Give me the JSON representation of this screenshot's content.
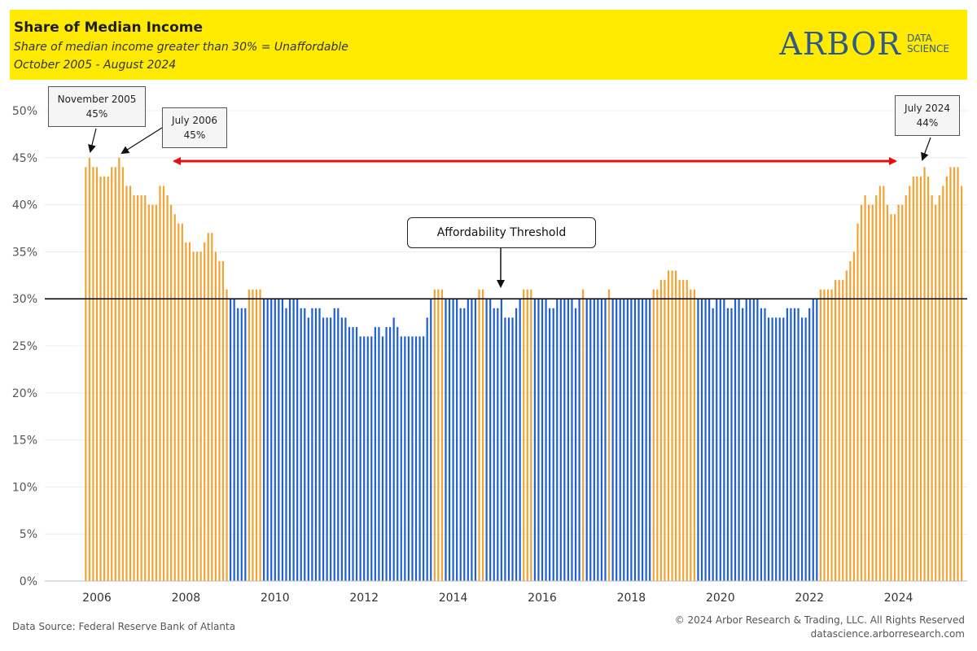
{
  "header": {
    "title": "Share of Median Income",
    "subtitle": "Share of median income greater than 30% = Unaffordable",
    "date_range": "October 2005 - August 2024",
    "background": "#ffea00"
  },
  "logo": {
    "main": "ARBOR",
    "line1": "DATA",
    "line2": "SCIENCE",
    "color": "#2e5a8a"
  },
  "footer": {
    "source": "Data Source: Federal Reserve Bank of Atlanta",
    "copyright": "© 2024 Arbor Research & Trading, LLC. All Rights Reserved",
    "website": "datascience.arborresearch.com"
  },
  "annotations": {
    "nov2005": {
      "label": "November 2005",
      "value": "45%"
    },
    "jul2006": {
      "label": "July 2006",
      "value": "45%"
    },
    "jul2024": {
      "label": "July 2024",
      "value": "44%"
    },
    "threshold_label": "Affordability Threshold"
  },
  "chart_data": {
    "type": "bar",
    "title": "Share of Median Income",
    "start": "2005-10",
    "end": "2024-08",
    "threshold": 30,
    "ylim": [
      0,
      50
    ],
    "y_ticks": [
      "0%",
      "5%",
      "10%",
      "15%",
      "20%",
      "25%",
      "30%",
      "35%",
      "40%",
      "45%",
      "50%"
    ],
    "x_ticks": [
      "2006",
      "2008",
      "2010",
      "2012",
      "2014",
      "2016",
      "2018",
      "2020",
      "2022",
      "2024"
    ],
    "colors": {
      "unaffordable": "#f3a234",
      "affordable": "#1f5fd1",
      "threshold_line": "#000000",
      "span_arrow": "#e01010"
    },
    "values": [
      44,
      45,
      44,
      44,
      43,
      43,
      43,
      44,
      44,
      45,
      44,
      42,
      42,
      41,
      41,
      41,
      41,
      40,
      40,
      40,
      42,
      42,
      41,
      40,
      39,
      38,
      38,
      36,
      36,
      35,
      35,
      35,
      36,
      37,
      37,
      35,
      34,
      34,
      31,
      30,
      30,
      29,
      29,
      29,
      31,
      31,
      31,
      31,
      30,
      30,
      30,
      30,
      30,
      30,
      29,
      30,
      30,
      30,
      29,
      29,
      28,
      29,
      29,
      29,
      28,
      28,
      28,
      29,
      29,
      28,
      28,
      27,
      27,
      27,
      26,
      26,
      26,
      26,
      27,
      27,
      26,
      27,
      27,
      28,
      27,
      26,
      26,
      26,
      26,
      26,
      26,
      26,
      28,
      30,
      31,
      31,
      31,
      30,
      30,
      30,
      30,
      29,
      29,
      30,
      30,
      30,
      31,
      31,
      30,
      30,
      29,
      29,
      30,
      28,
      28,
      28,
      29,
      30,
      31,
      31,
      31,
      30,
      30,
      30,
      30,
      29,
      29,
      30,
      30,
      30,
      30,
      30,
      29,
      30,
      31,
      30,
      30,
      30,
      30,
      30,
      30,
      31,
      30,
      30,
      30,
      30,
      30,
      30,
      30,
      30,
      30,
      30,
      30,
      31,
      31,
      32,
      32,
      33,
      33,
      33,
      32,
      32,
      32,
      31,
      31,
      30,
      30,
      30,
      30,
      29,
      30,
      30,
      30,
      29,
      29,
      30,
      30,
      29,
      30,
      30,
      30,
      30,
      29,
      29,
      28,
      28,
      28,
      28,
      28,
      29,
      29,
      29,
      29,
      28,
      28,
      29,
      30,
      30,
      31,
      31,
      31,
      31,
      32,
      32,
      32,
      33,
      34,
      35,
      38,
      40,
      41,
      40,
      40,
      41,
      42,
      42,
      40,
      39,
      39,
      40,
      40,
      41,
      42,
      43,
      43,
      43,
      44,
      43,
      41,
      40,
      41,
      42,
      43,
      44,
      44,
      44,
      42
    ]
  }
}
